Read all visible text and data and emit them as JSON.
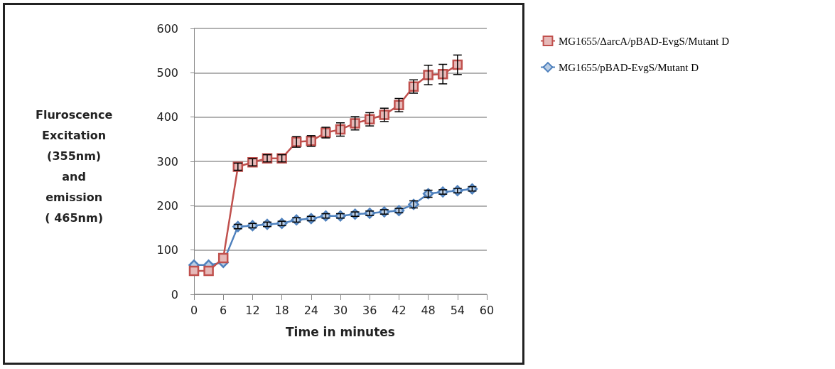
{
  "chart_data": {
    "type": "line",
    "xlabel": "Time in minutes",
    "ylabel": "Fluroscence\nExcitation\n(355nm)\nand\nemission\n( 465nm)",
    "xlim": [
      0,
      60
    ],
    "xticks": [
      0,
      6,
      12,
      18,
      24,
      30,
      36,
      42,
      48,
      54,
      60
    ],
    "ylim": [
      0,
      600
    ],
    "yticks": [
      0,
      100,
      200,
      300,
      400,
      500,
      600
    ],
    "grid": "y",
    "legend": "top right",
    "line_style": "solid",
    "series": [
      {
        "name": "MG1655/ΔarcA/pBAD-EvgS/Mutant D",
        "color": "#c0504d",
        "marker": "square",
        "x": [
          0,
          3,
          6,
          9,
          12,
          15,
          18,
          21,
          24,
          27,
          30,
          33,
          36,
          39,
          42,
          45,
          48,
          51,
          54
        ],
        "values": [
          53,
          53,
          82,
          288,
          298,
          307,
          307,
          344,
          346,
          365,
          372,
          386,
          395,
          405,
          427,
          469,
          495,
          497,
          518
        ],
        "errors": [
          null,
          null,
          null,
          8,
          8,
          8,
          8,
          12,
          12,
          12,
          15,
          15,
          15,
          15,
          15,
          15,
          22,
          22,
          22
        ]
      },
      {
        "name": "MG1655/pBAD-EvgS/Mutant D",
        "color": "#4f81bd",
        "marker": "diamond",
        "x": [
          0,
          3,
          6,
          9,
          12,
          15,
          18,
          21,
          24,
          27,
          30,
          33,
          36,
          39,
          42,
          45,
          48,
          51,
          54,
          57
        ],
        "values": [
          66,
          66,
          72,
          153,
          155,
          158,
          160,
          168,
          171,
          177,
          177,
          181,
          183,
          186,
          189,
          203,
          227,
          231,
          234,
          238
        ],
        "errors": [
          null,
          null,
          null,
          5,
          5,
          5,
          5,
          5,
          5,
          5,
          5,
          5,
          5,
          5,
          5,
          8,
          8,
          5,
          5,
          5
        ]
      }
    ]
  }
}
